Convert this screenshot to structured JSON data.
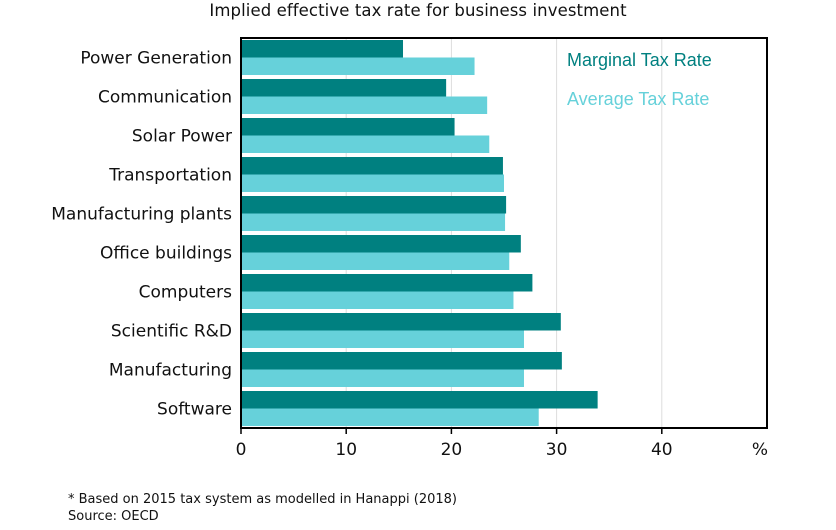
{
  "chart_data": {
    "type": "bar",
    "orientation": "horizontal",
    "title": "Implied effective tax rate for business investment",
    "xlabel": "%",
    "ylabel": "",
    "xlim": [
      0,
      50
    ],
    "xticks": [
      0,
      10,
      20,
      30,
      40
    ],
    "grid": true,
    "legend_position": "top-right",
    "categories": [
      "Power Generation",
      "Communication",
      "Solar Power",
      "Transportation",
      "Manufacturing plants",
      "Office buildings",
      "Computers",
      "Scientific R&D",
      "Manufacturing",
      "Software"
    ],
    "series": [
      {
        "name": "Marginal Tax Rate",
        "color": "#008080",
        "values": [
          15.4,
          19.5,
          20.3,
          24.9,
          25.2,
          26.6,
          27.7,
          30.4,
          30.5,
          33.9
        ]
      },
      {
        "name": "Average Tax Rate",
        "color": "#66d1da",
        "values": [
          22.2,
          23.4,
          23.6,
          25.0,
          25.1,
          25.5,
          25.9,
          26.9,
          26.9,
          28.3
        ]
      }
    ]
  },
  "footnote": {
    "note": "* Based on 2015 tax system as modelled in Hanappi (2018)",
    "source": "Source: OECD"
  }
}
